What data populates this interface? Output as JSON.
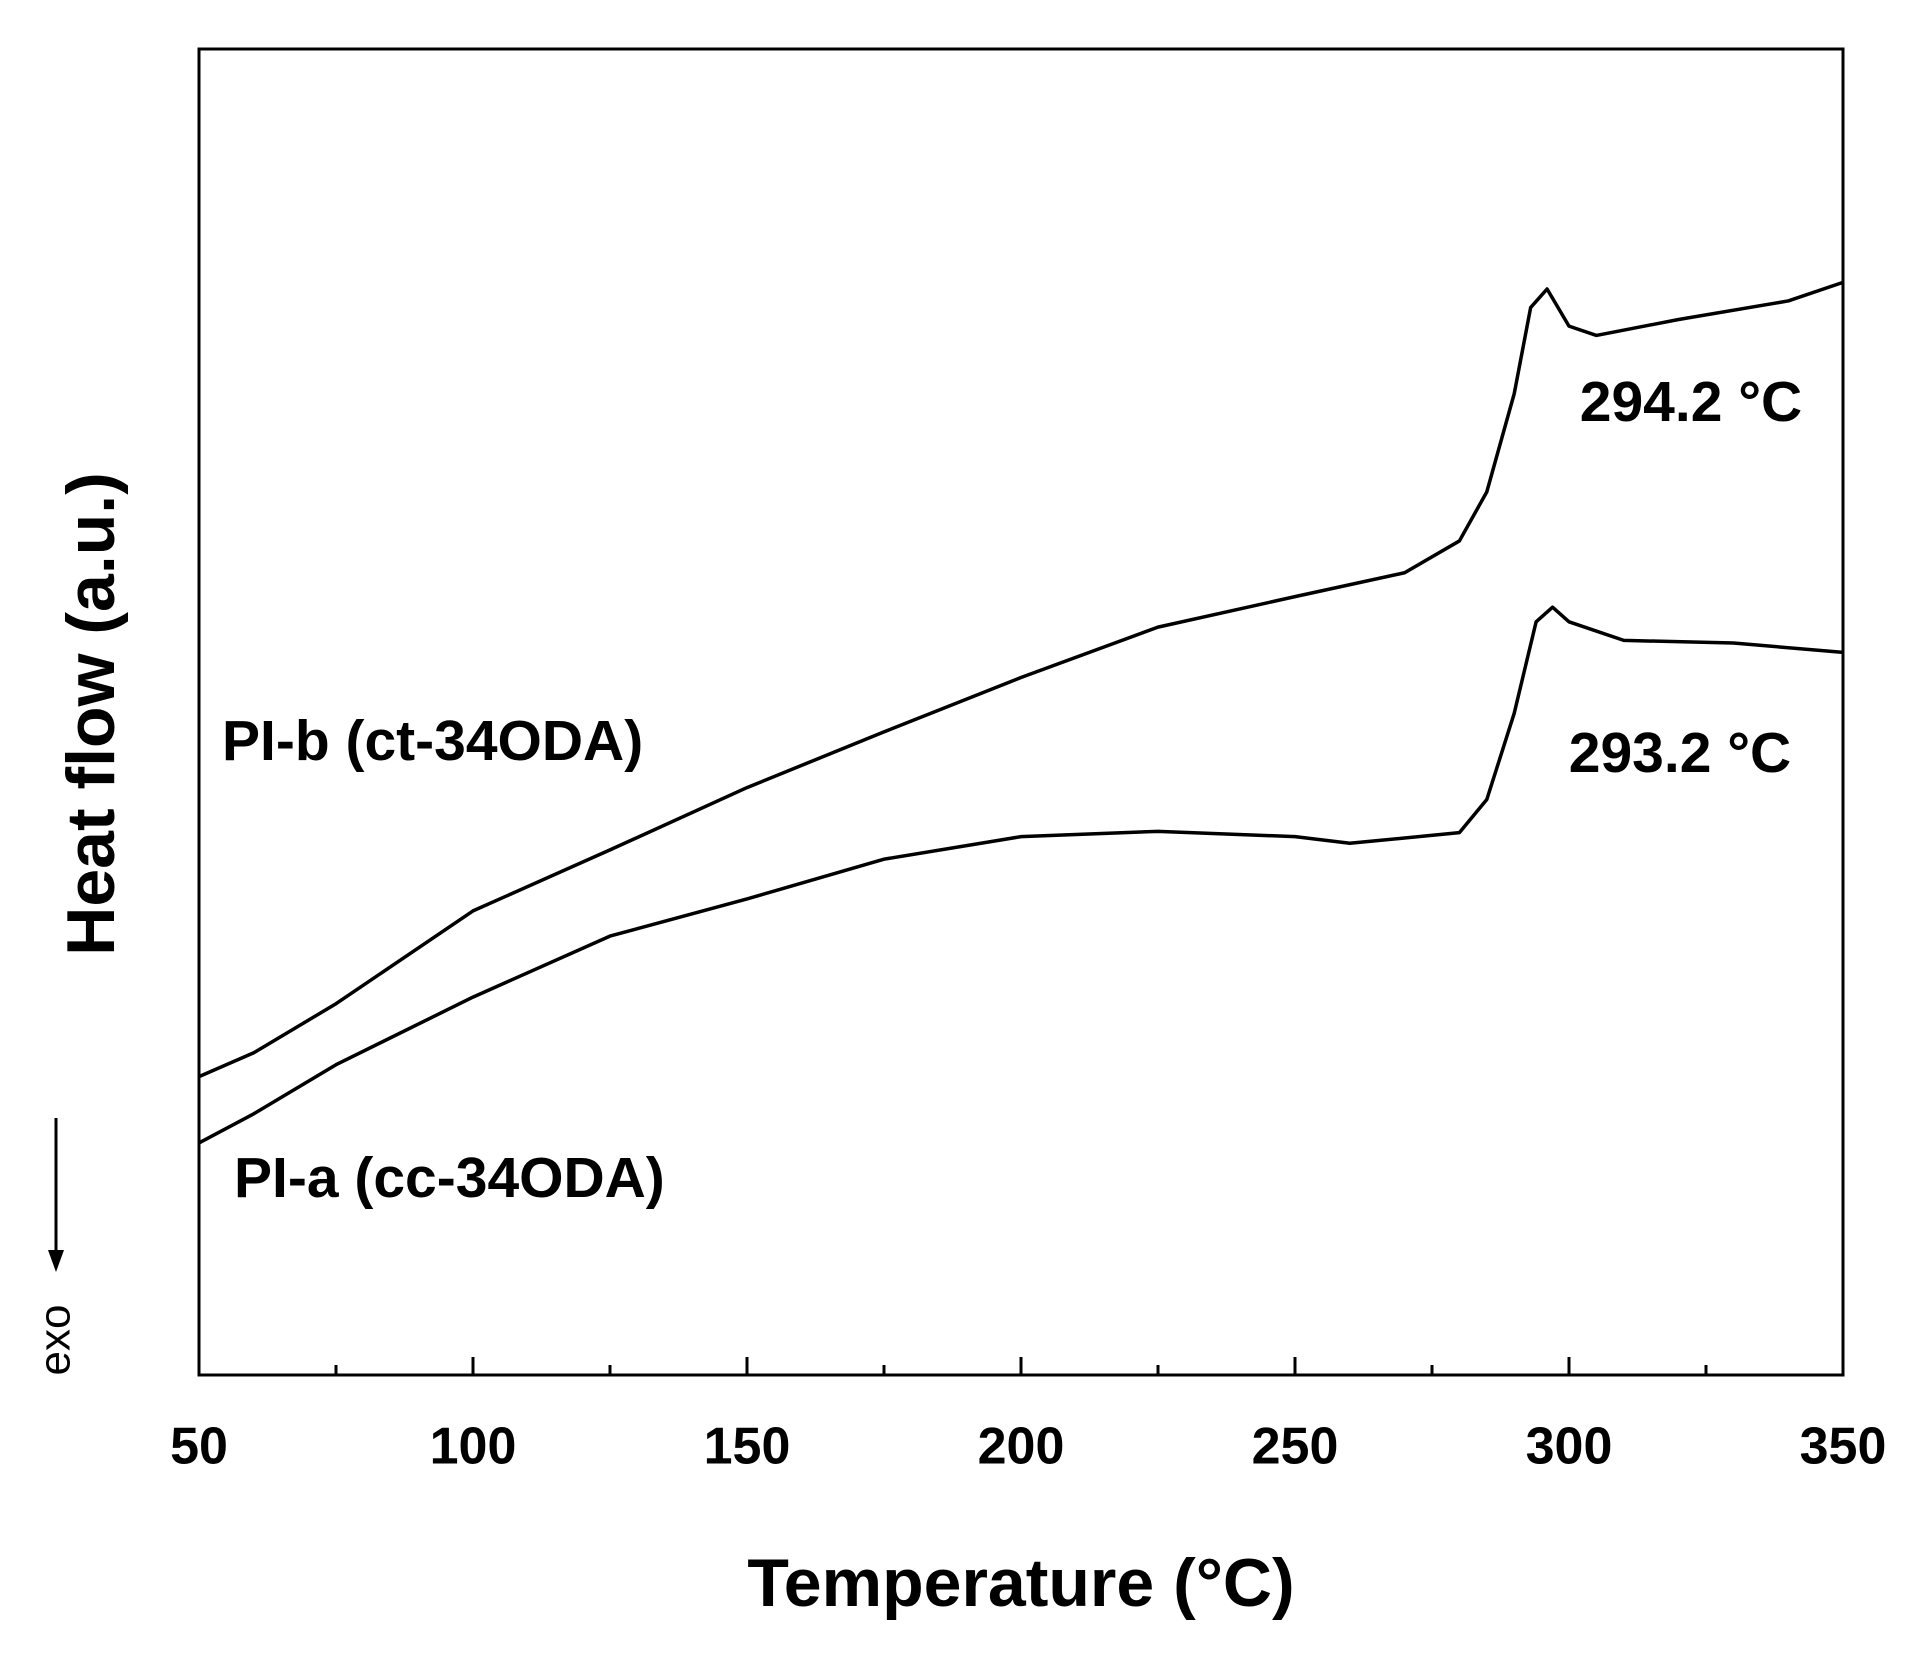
{
  "chart_data": {
    "type": "line",
    "xlabel": "Temperature (°C)",
    "ylabel": "Heat flow (a.u.)",
    "xlim": [
      50,
      350
    ],
    "xticks": [
      50,
      100,
      150,
      200,
      250,
      300,
      350
    ],
    "x_minor_ticks": [
      75,
      125,
      175,
      225,
      275,
      325
    ],
    "ylim": [
      0,
      100
    ],
    "color": "#000000",
    "series": [
      {
        "name": "PI-b (ct-34ODA)",
        "x": [
          50,
          60,
          75,
          90,
          100,
          125,
          150,
          175,
          200,
          225,
          250,
          270,
          280,
          285,
          290,
          293,
          296,
          300,
          305,
          320,
          340,
          350
        ],
        "values": [
          22.5,
          24.3,
          28.0,
          32.2,
          35.0,
          39.6,
          44.3,
          48.5,
          52.6,
          56.4,
          58.7,
          60.5,
          62.9,
          66.6,
          74.0,
          80.5,
          81.9,
          79.1,
          78.4,
          79.6,
          81.0,
          82.4
        ]
      },
      {
        "name": "PI-a (cc-34ODA)",
        "x": [
          50,
          60,
          75,
          100,
          125,
          150,
          175,
          200,
          225,
          250,
          260,
          280,
          285,
          290,
          294,
          297,
          300,
          310,
          330,
          350
        ],
        "values": [
          17.5,
          19.7,
          23.4,
          28.5,
          33.1,
          35.9,
          38.9,
          40.6,
          41.0,
          40.6,
          40.1,
          40.9,
          43.4,
          49.9,
          56.8,
          57.9,
          56.8,
          55.4,
          55.2,
          54.5
        ]
      }
    ],
    "annotations": [
      "294.2 °C",
      "293.2 °C",
      "exo"
    ]
  }
}
